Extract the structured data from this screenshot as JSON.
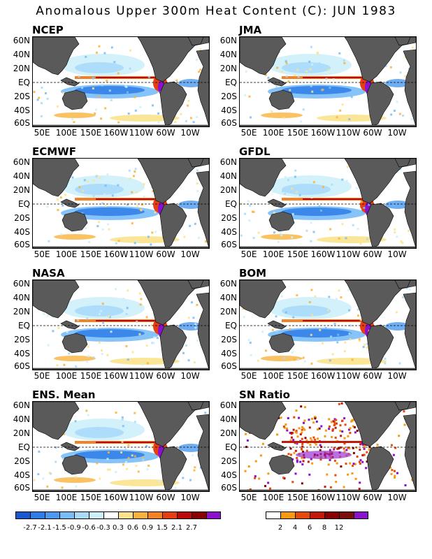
{
  "title": "Anomalous Upper 300m Heat Content (C): JUN 1983",
  "lat_labels": [
    "60N",
    "40N",
    "20N",
    "EQ",
    "20S",
    "40S",
    "60S"
  ],
  "lon_labels": [
    "50E",
    "100E",
    "150E",
    "160W",
    "110W",
    "60W",
    "10W"
  ],
  "panels": [
    {
      "name": "NCEP",
      "kind": "anom"
    },
    {
      "name": "JMA",
      "kind": "anom"
    },
    {
      "name": "ECMWF",
      "kind": "anom"
    },
    {
      "name": "GFDL",
      "kind": "anom"
    },
    {
      "name": "NASA",
      "kind": "anom"
    },
    {
      "name": "BOM",
      "kind": "anom"
    },
    {
      "name": "ENS. Mean",
      "kind": "anom"
    },
    {
      "name": "SN Ratio",
      "kind": "sn"
    }
  ],
  "anom_colorbar": {
    "colors": [
      "#1858d0",
      "#2f7de8",
      "#4c9af0",
      "#79bdf7",
      "#a9daf9",
      "#cdf0fb",
      "#ffffff",
      "#fbe38c",
      "#f9b33c",
      "#f48224",
      "#e63e10",
      "#bb0a0a",
      "#8a0000",
      "#8b12cc"
    ],
    "labels": [
      "-2.7",
      "-2.1",
      "-1.5",
      "-0.9",
      "-0.6",
      "-0.3",
      "0.3",
      "0.6",
      "0.9",
      "1.5",
      "2.1",
      "2.7"
    ]
  },
  "sn_colorbar": {
    "colors": [
      "#ffffff",
      "#f59a12",
      "#e84a0c",
      "#c11a0a",
      "#8a0000",
      "#7b0d0d",
      "#8b12cc"
    ],
    "labels": [
      "2",
      "4",
      "6",
      "8",
      "12"
    ]
  }
}
